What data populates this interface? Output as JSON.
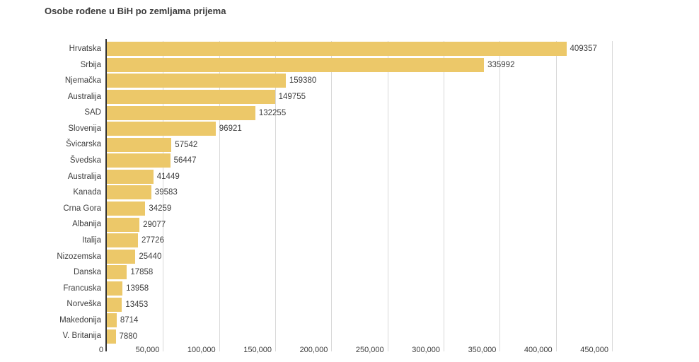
{
  "chart_data": {
    "type": "bar",
    "orientation": "horizontal",
    "title": "Osobe rođene u BiH po zemljama prijema",
    "categories": [
      "Hrvatska",
      "Srbija",
      "Njemačka",
      "Australija",
      "SAD",
      "Slovenija",
      "Švicarska",
      "Švedska",
      "Australija",
      "Kanada",
      "Crna Gora",
      "Albanija",
      "Italija",
      "Nizozemska",
      "Danska",
      "Francuska",
      "Norveška",
      "Makedonija",
      "V. Britanija"
    ],
    "values": [
      409357,
      335992,
      159380,
      149755,
      132255,
      96921,
      57542,
      56447,
      41449,
      39583,
      34259,
      29077,
      27726,
      25440,
      17858,
      13958,
      13453,
      8714,
      7880
    ],
    "xlabel": "",
    "ylabel": "",
    "xlim": [
      0,
      450000
    ],
    "x_tick_step": 50000,
    "x_tick_labels": [
      "0",
      "50,000",
      "100,000",
      "150,000",
      "200,000",
      "250,000",
      "300,000",
      "350,000",
      "400,000",
      "450,000"
    ],
    "grid": true,
    "legend": false,
    "data_labels": true,
    "colors": {
      "bar": "#ecc869",
      "grid": "#d8d8d8",
      "axis": "#333333",
      "text": "#3d3d3d",
      "title": "#3a3a3a",
      "background": "#ffffff"
    }
  }
}
